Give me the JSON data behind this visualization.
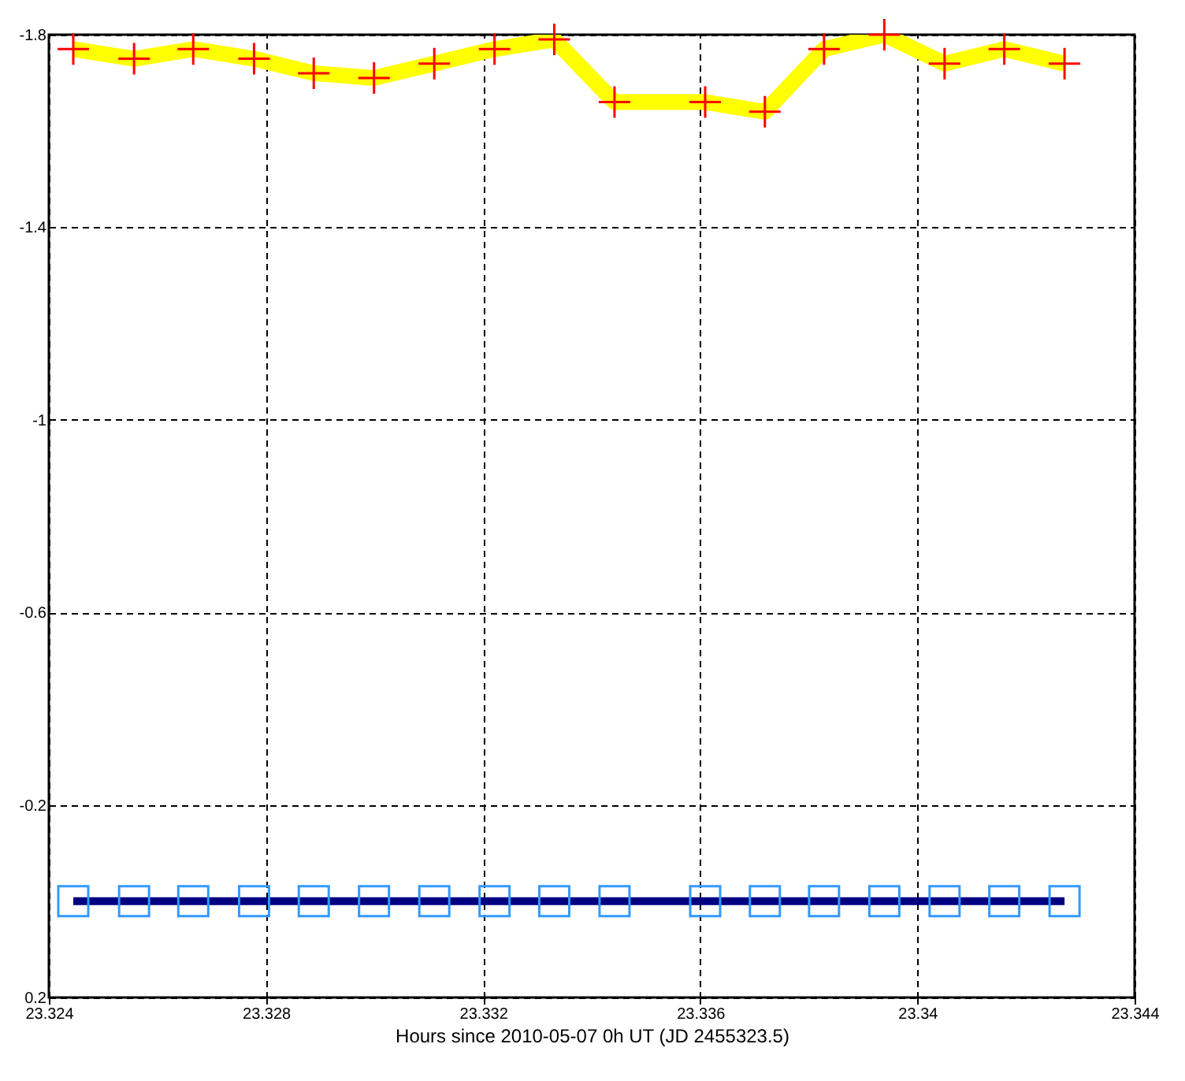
{
  "chart_data": {
    "type": "line",
    "xlabel": "Hours since 2010-05-07 0h UT (JD 2455323.5)",
    "xlim": [
      23.324,
      23.344
    ],
    "xticks": [
      23.324,
      23.328,
      23.332,
      23.336,
      23.34,
      23.344
    ],
    "ylim": [
      0.2,
      -1.8
    ],
    "yticks": [
      -1.8,
      -1.4,
      -1,
      -0.6,
      -0.2,
      0.2
    ],
    "grid": true,
    "series": [
      {
        "color": "#ffff00",
        "marker": "none",
        "x": [
          23.32445,
          23.32557,
          23.32666,
          23.32778,
          23.32888,
          23.32999,
          23.3311,
          23.33221,
          23.33331,
          23.33442,
          23.33609,
          23.33719,
          23.33828,
          23.33939,
          23.3405,
          23.3416,
          23.34271
        ],
        "values": [
          -1.77,
          -1.75,
          -1.77,
          -1.75,
          -1.72,
          -1.71,
          -1.74,
          -1.77,
          -1.79,
          -1.66,
          -1.66,
          -1.64,
          -1.77,
          -1.8,
          -1.74,
          -1.77,
          -1.74
        ]
      },
      {
        "type": "scatter",
        "color": "#ff0000",
        "marker": "cross",
        "x": [
          23.32445,
          23.32557,
          23.32666,
          23.32778,
          23.32888,
          23.32999,
          23.3311,
          23.33221,
          23.33331,
          23.33442,
          23.33609,
          23.33719,
          23.33828,
          23.33939,
          23.3405,
          23.3416,
          23.34271
        ],
        "values": [
          -1.77,
          -1.75,
          -1.77,
          -1.75,
          -1.72,
          -1.71,
          -1.74,
          -1.77,
          -1.79,
          -1.66,
          -1.66,
          -1.64,
          -1.77,
          -1.8,
          -1.74,
          -1.77,
          -1.74
        ]
      },
      {
        "color": "#000080",
        "marker": "none",
        "x": [
          23.32445,
          23.32557,
          23.32666,
          23.32778,
          23.32888,
          23.32999,
          23.3311,
          23.33221,
          23.33331,
          23.33442,
          23.33609,
          23.33719,
          23.33828,
          23.33939,
          23.3405,
          23.3416,
          23.34271
        ],
        "values": [
          0,
          0,
          0,
          0,
          0,
          0,
          0,
          0,
          0,
          0,
          0,
          0,
          0,
          0,
          0,
          0,
          0
        ]
      },
      {
        "type": "scatter",
        "color": "#3399ff",
        "marker": "square",
        "x": [
          23.32445,
          23.32557,
          23.32666,
          23.32778,
          23.32888,
          23.32999,
          23.3311,
          23.33221,
          23.33331,
          23.33442,
          23.33609,
          23.33719,
          23.33828,
          23.33939,
          23.3405,
          23.3416,
          23.34271
        ],
        "values": [
          0,
          0,
          0,
          0,
          0,
          0,
          0,
          0,
          0,
          0,
          0,
          0,
          0,
          0,
          0,
          0,
          0
        ]
      }
    ]
  }
}
